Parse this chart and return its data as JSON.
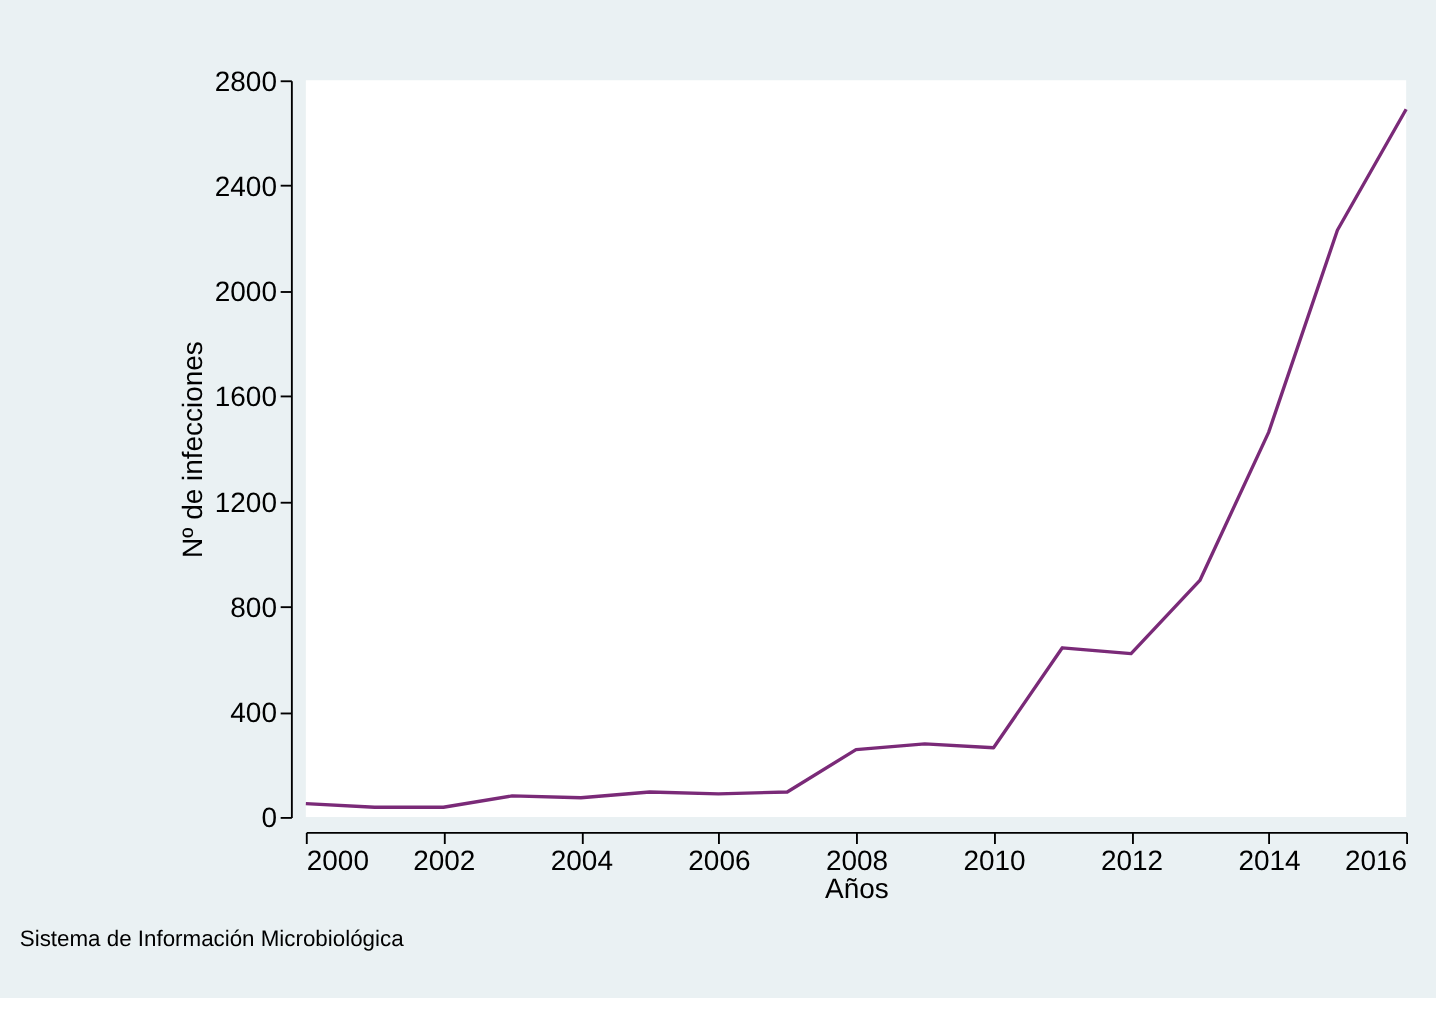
{
  "chart_data": {
    "type": "line",
    "xlabel": "Años",
    "ylabel": "Nº de infecciones",
    "x": [
      2000,
      2001,
      2002,
      2003,
      2004,
      2005,
      2006,
      2007,
      2008,
      2009,
      2010,
      2011,
      2012,
      2013,
      2014,
      2015,
      2016
    ],
    "series": [
      {
        "color": "#7a2a78",
        "values": [
          51,
          37,
          37,
          80,
          73,
          95,
          88,
          95,
          256,
          278,
          263,
          643,
          621,
          899,
          1462,
          2230,
          2690
        ]
      }
    ],
    "xlim": [
      2000,
      2016
    ],
    "xticks": [
      2000,
      2002,
      2004,
      2006,
      2008,
      2010,
      2012,
      2014,
      2016
    ],
    "ylim": [
      0,
      2800
    ],
    "yticks": [
      0,
      400,
      800,
      1200,
      1600,
      2000,
      2400,
      2800
    ],
    "grid": false,
    "marker": "none",
    "line_style": "solid",
    "annotations": [
      "Sistema de Información Microbiológica"
    ]
  }
}
